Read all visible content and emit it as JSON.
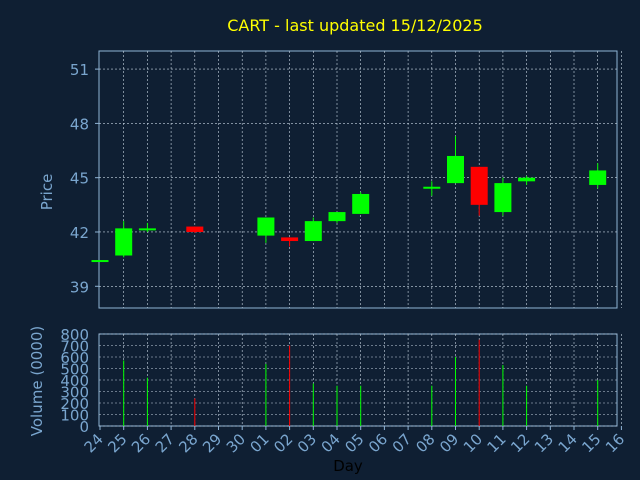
{
  "chart_data": {
    "type": "candlestick",
    "title": "CART - last updated 15/12/2025",
    "xlabel": "Day",
    "price_panel": {
      "ylabel": "Price",
      "ylim": [
        37.8,
        52
      ],
      "yticks": [
        39,
        42,
        45,
        48,
        51
      ]
    },
    "volume_panel": {
      "ylabel": "Volume (0000)",
      "ylim": [
        0,
        800
      ],
      "yticks": [
        0,
        100,
        200,
        300,
        400,
        500,
        600,
        700,
        800
      ]
    },
    "x_tick_labels": [
      "24",
      "25",
      "26",
      "27",
      "28",
      "29",
      "30",
      "01",
      "02",
      "03",
      "04",
      "05",
      "06",
      "07",
      "08",
      "09",
      "10",
      "11",
      "12",
      "13",
      "14",
      "15",
      "16"
    ],
    "candles": [
      {
        "day": "24",
        "open": 40.45,
        "close": 40.45,
        "high": 40.45,
        "low": 40.45,
        "volume": 0
      },
      {
        "day": "25",
        "open": 40.7,
        "close": 42.2,
        "high": 42.6,
        "low": 40.6,
        "volume": 570
      },
      {
        "day": "26",
        "open": 42.1,
        "close": 42.2,
        "high": 42.5,
        "low": 42.0,
        "volume": 420
      },
      {
        "day": "28",
        "open": 42.3,
        "close": 42.0,
        "high": 42.3,
        "low": 41.95,
        "volume": 240
      },
      {
        "day": "01",
        "open": 41.8,
        "close": 42.8,
        "high": 42.8,
        "low": 41.4,
        "volume": 540
      },
      {
        "day": "02",
        "open": 41.7,
        "close": 41.5,
        "high": 41.7,
        "low": 41.2,
        "volume": 700
      },
      {
        "day": "03",
        "open": 41.5,
        "close": 42.6,
        "high": 42.8,
        "low": 41.5,
        "volume": 370
      },
      {
        "day": "04",
        "open": 42.6,
        "close": 43.1,
        "high": 43.1,
        "low": 42.5,
        "volume": 350
      },
      {
        "day": "05",
        "open": 43.0,
        "close": 44.1,
        "high": 44.2,
        "low": 43.0,
        "volume": 350
      },
      {
        "day": "08",
        "open": 44.5,
        "close": 44.5,
        "high": 44.8,
        "low": 44.0,
        "volume": 350
      },
      {
        "day": "09",
        "open": 44.7,
        "close": 46.2,
        "high": 47.3,
        "low": 44.7,
        "volume": 600
      },
      {
        "day": "10",
        "open": 45.6,
        "close": 43.5,
        "high": 45.6,
        "low": 42.9,
        "volume": 750
      },
      {
        "day": "11",
        "open": 43.1,
        "close": 44.7,
        "high": 45.0,
        "low": 42.9,
        "volume": 530
      },
      {
        "day": "12",
        "open": 44.8,
        "close": 45.0,
        "high": 45.1,
        "low": 44.6,
        "volume": 350
      },
      {
        "day": "15",
        "open": 44.6,
        "close": 45.4,
        "high": 45.8,
        "low": 44.4,
        "volume": 400
      }
    ],
    "grid": true
  },
  "colors": {
    "background": "#0f1f33",
    "frame": "#8fb4d6",
    "grid": "#c8d6e3",
    "axis_text": "#7aa6cf",
    "title": "#ffff00",
    "up": "#00ff00",
    "down": "#ff0000",
    "label": "#000000"
  }
}
